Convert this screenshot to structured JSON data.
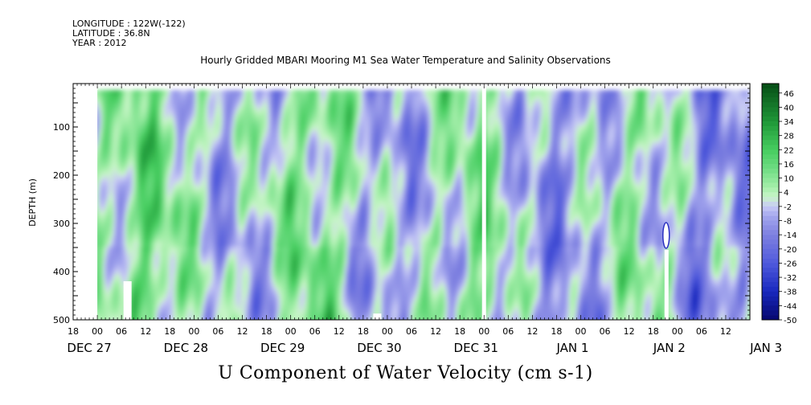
{
  "header": {
    "longitude": "LONGITUDE : 122W(-122)",
    "latitude": "LATITUDE : 36.8N",
    "year": "YEAR : 2012"
  },
  "chart_data": {
    "type": "heatmap",
    "title": "Hourly Gridded MBARI Mooring M1 Sea Water Temperature and Salinity Observations",
    "variable_label": "U Component of Water Velocity (cm s-1)",
    "ylabel": "DEPTH (m)",
    "y_ticks": [
      "100",
      "200",
      "300",
      "400",
      "500"
    ],
    "y_range": [
      10,
      500
    ],
    "y_reversed": true,
    "x_range_hours": [
      -6,
      162
    ],
    "x_hour_ticks": [
      "18",
      "00",
      "06",
      "12",
      "18",
      "00",
      "06",
      "12",
      "18",
      "00",
      "06",
      "12",
      "18",
      "00",
      "06",
      "12",
      "18",
      "00",
      "06",
      "12",
      "18",
      "00",
      "06",
      "12",
      "18",
      "00",
      "06",
      "12"
    ],
    "x_date_labels": [
      "DEC 27",
      "DEC 28",
      "DEC 29",
      "DEC 30",
      "DEC 31",
      "JAN 1",
      "JAN 2",
      "JAN 3"
    ],
    "colorbar_labels": [
      "46",
      "40",
      "34",
      "28",
      "22",
      "16",
      "10",
      "4",
      "-2",
      "-8",
      "-14",
      "-20",
      "-26",
      "-32",
      "-38",
      "-44",
      "-50"
    ],
    "colorbar_range": [
      -50,
      50
    ],
    "colors": {
      "strong_negative": "#06066e",
      "negative": "#7e80e0",
      "weak_negative": "#b3b6f0",
      "weak_positive": "#b0f0b0",
      "positive": "#4fd065",
      "strong_positive": "#064d16"
    }
  }
}
